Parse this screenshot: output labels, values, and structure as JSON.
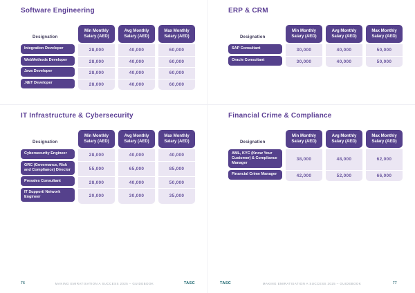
{
  "colors": {
    "accent_purple": "#55418c",
    "light_lavender": "#ebe6f3",
    "value_text": "#6a579f",
    "title_purple": "#5b3e94",
    "logo_teal": "#15626b"
  },
  "tables": [
    {
      "title": "Software Engineering",
      "designation_label": "Designation",
      "columns": [
        "Min Monthly Salary (AED)",
        "Avg Monthly Salary (AED)",
        "Max Monthly Salary (AED)"
      ],
      "rows": [
        {
          "designation": "Integration Developer",
          "min": "28,000",
          "avg": "40,000",
          "max": "60,000"
        },
        {
          "designation": "WebMethods Developer",
          "min": "28,000",
          "avg": "40,000",
          "max": "60,000"
        },
        {
          "designation": "Java Developer",
          "min": "28,000",
          "avg": "40,000",
          "max": "60,000"
        },
        {
          "designation": ".NET Developer",
          "min": "28,000",
          "avg": "40,000",
          "max": "60,000"
        }
      ]
    },
    {
      "title": "ERP & CRM",
      "designation_label": "Designation",
      "columns": [
        "Min Monthly Salary (AED)",
        "Avg Monthly Salary (AED)",
        "Max Monthly Salary (AED)"
      ],
      "rows": [
        {
          "designation": "SAP Consultant",
          "min": "30,000",
          "avg": "40,000",
          "max": "50,000"
        },
        {
          "designation": "Oracle Consultant",
          "min": "30,000",
          "avg": "40,000",
          "max": "50,000"
        }
      ]
    },
    {
      "title": "IT Infrastructure & Cybersecurity",
      "designation_label": "Designation",
      "columns": [
        "Min Monthly Salary (AED)",
        "Avg Monthly Salary (AED)",
        "Max Monthly Salary (AED)"
      ],
      "rows": [
        {
          "designation": "Cybersecurity Engineer",
          "min": "28,000",
          "avg": "40,000",
          "max": "40,000"
        },
        {
          "designation": "GRC (Governance, Risk and Compliance) Director",
          "min": "55,000",
          "avg": "65,000",
          "max": "85,000"
        },
        {
          "designation": "Presales Consultant",
          "min": "28,000",
          "avg": "40,000",
          "max": "50,000"
        },
        {
          "designation": "IT Support/ Network Engineer",
          "min": "20,000",
          "avg": "30,000",
          "max": "35,000"
        }
      ]
    },
    {
      "title": "Financial Crime & Compliance",
      "designation_label": "Designation",
      "columns": [
        "Min Monthly Salary (AED)",
        "Avg Monthly Salary (AED)",
        "Max Monthly Salary (AED)"
      ],
      "rows": [
        {
          "designation": "AML, KYC (Know Your Customer) & Compliance Manager",
          "min": "38,000",
          "avg": "48,000",
          "max": "62,000"
        },
        {
          "designation": "Financial Crime Manager",
          "min": "42,000",
          "avg": "52,000",
          "max": "66,000"
        }
      ]
    }
  ],
  "footer": {
    "left_page_number": "76",
    "right_page_number": "77",
    "doc_title": "MAKING EMIRATISATION A SUCCESS 2025 – GUIDEBOOK",
    "logo_text": "TASC"
  }
}
